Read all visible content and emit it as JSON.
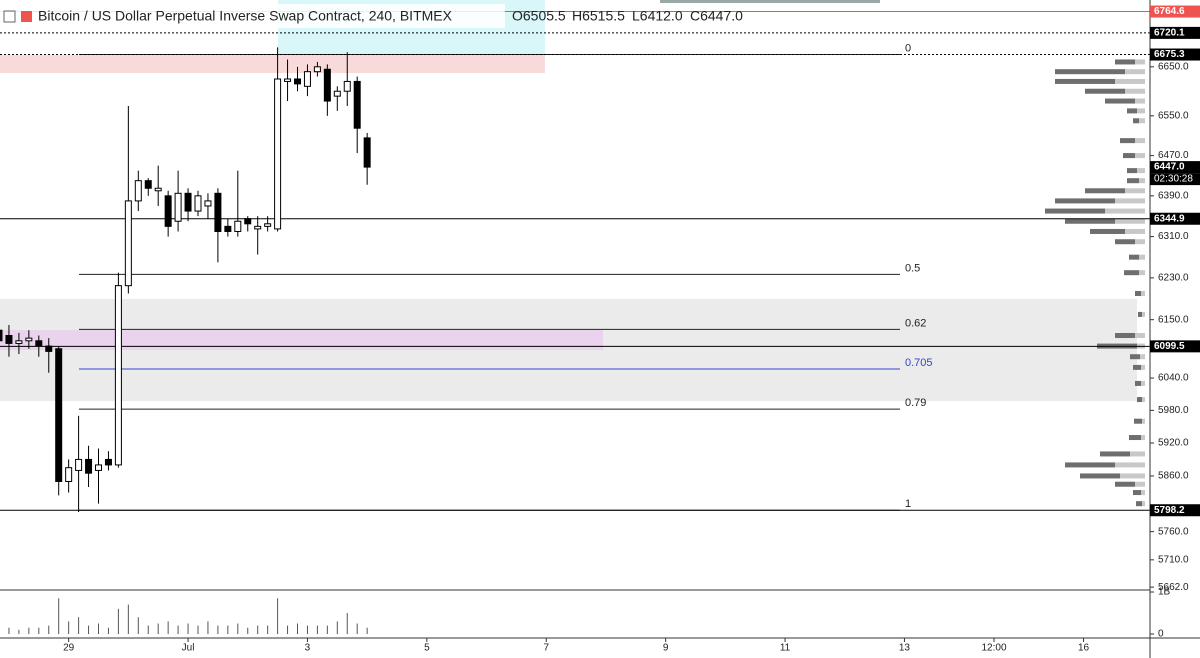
{
  "chart_data": {
    "type": "candlestick",
    "title": "Bitcoin / US Dollar Perpetual Inverse Swap Contract, 240, BITMEX",
    "ohlc_labels": [
      "O6505.5",
      "H6515.5",
      "L6412.0",
      "C6447.0"
    ],
    "log_scale": true,
    "ylim": [
      5657,
      6772
    ],
    "yticks": [
      {
        "value": 6650,
        "label": "6650.0"
      },
      {
        "value": 6550,
        "label": "6550.0"
      },
      {
        "value": 6470,
        "label": "6470.0"
      },
      {
        "value": 6390,
        "label": "6390.0"
      },
      {
        "value": 6310,
        "label": "6310.0"
      },
      {
        "value": 6230,
        "label": "6230.0"
      },
      {
        "value": 6150,
        "label": "6150.0"
      },
      {
        "value": 6040,
        "label": "6040.0"
      },
      {
        "value": 5980,
        "label": "5980.0"
      },
      {
        "value": 5920,
        "label": "5920.0"
      },
      {
        "value": 5860,
        "label": "5860.0"
      },
      {
        "value": 5760,
        "label": "5760.0"
      },
      {
        "value": 5710,
        "label": "5710.0"
      },
      {
        "value": 5662,
        "label": "5662.0"
      }
    ],
    "xticks": [
      {
        "value": 7,
        "label": "29"
      },
      {
        "value": 19,
        "label": "Jul"
      },
      {
        "value": 31,
        "label": "3"
      },
      {
        "value": 43,
        "label": "5"
      },
      {
        "value": 55,
        "label": "7"
      },
      {
        "value": 67,
        "label": "9"
      },
      {
        "value": 79,
        "label": "11"
      },
      {
        "value": 91,
        "label": "13"
      },
      {
        "value": 100,
        "label": "12:00"
      },
      {
        "value": 109,
        "label": "16"
      }
    ],
    "colors": {
      "up": "#ffffff",
      "down": "#000000"
    },
    "open": [
      6130,
      6120,
      6105,
      6110,
      6110,
      6100,
      6095,
      5850,
      5870,
      5890,
      5870,
      5890,
      5880,
      6215,
      6380,
      6420,
      6400,
      6390,
      6340,
      6395,
      6360,
      6370,
      6395,
      6330,
      6320,
      6345,
      6325,
      6330,
      6325,
      6620,
      6625,
      6610,
      6640,
      6645,
      6590,
      6600,
      6620,
      6505.5
    ],
    "high": [
      6180,
      6140,
      6125,
      6130,
      6120,
      6115,
      6100,
      5890,
      5970,
      5915,
      5910,
      5905,
      6240,
      6570,
      6440,
      6425,
      6450,
      6400,
      6440,
      6405,
      6400,
      6395,
      6405,
      6345,
      6440,
      6350,
      6350,
      6350,
      6690,
      6665,
      6650,
      6655,
      6660,
      6655,
      6610,
      6680,
      6630,
      6515.5
    ],
    "low": [
      6100,
      6080,
      6085,
      6095,
      6080,
      6050,
      5825,
      5830,
      5795,
      5840,
      5810,
      5870,
      5875,
      6200,
      6360,
      6390,
      6370,
      6310,
      6320,
      6340,
      6350,
      6345,
      6260,
      6310,
      6310,
      6320,
      6275,
      6320,
      6320,
      6580,
      6600,
      6590,
      6630,
      6550,
      6560,
      6570,
      6475,
      6412
    ],
    "close": [
      6110,
      6105,
      6110,
      6115,
      6100,
      6090,
      5850,
      5875,
      5890,
      5865,
      5880,
      5880,
      6215,
      6380,
      6420,
      6405,
      6405,
      6330,
      6395,
      6360,
      6390,
      6380,
      6320,
      6320,
      6340,
      6335,
      6330,
      6335,
      6625,
      6625,
      6615,
      6640,
      6650,
      6580,
      6600,
      6620,
      6525,
      6447
    ],
    "volume": [
      150000000,
      150000000,
      100000000,
      150000000,
      150000000,
      200000000,
      850000000,
      300000000,
      400000000,
      200000000,
      250000000,
      150000000,
      600000000,
      700000000,
      400000000,
      200000000,
      250000000,
      300000000,
      200000000,
      250000000,
      200000000,
      300000000,
      200000000,
      200000000,
      250000000,
      150000000,
      200000000,
      200000000,
      850000000,
      200000000,
      250000000,
      200000000,
      200000000,
      200000000,
      300000000,
      500000000,
      250000000,
      150000000
    ],
    "volume_ylim": [
      0,
      1000000000
    ],
    "volume_ticks": [
      0,
      {
        "value": 1000000000,
        "label": "1B"
      }
    ],
    "fib_levels": [
      {
        "ratio": 0,
        "price": 6675.3,
        "color": "#222222"
      },
      {
        "ratio": 0.5,
        "price": 6236.75,
        "color": "#222222"
      },
      {
        "ratio": 0.62,
        "price": 6131.5,
        "color": "#222222"
      },
      {
        "ratio": 0.705,
        "price": 6057,
        "color": "#3344cc"
      },
      {
        "ratio": 0.79,
        "price": 5982.4,
        "color": "#222222"
      },
      {
        "ratio": 1,
        "price": 5798.2,
        "color": "#222222"
      }
    ],
    "price_markers": [
      {
        "price": 6764.6,
        "color": "#ef5350",
        "line": "solid"
      },
      {
        "price": 6720.1,
        "color": "#000000",
        "line": "dotted"
      },
      {
        "price": 6675.3,
        "color": "#000000",
        "line": "dotted"
      },
      {
        "price": {
          "value": 6447,
          "label": "6447.0"
        },
        "color": "#000000",
        "line": "none"
      },
      {
        "price": 6344.9,
        "color": "#000000",
        "line": "solid"
      },
      {
        "price": 6099.5,
        "color": "#000000",
        "line": "solid"
      },
      {
        "price": 5798.2,
        "color": "#000000",
        "line": "solid"
      }
    ],
    "countdown": "02:30:28",
    "volume_profile": {
      "prices": [
        6660,
        6640,
        6620,
        6600,
        6580,
        6560,
        6540,
        6500,
        6470,
        6440,
        6420,
        6400,
        6380,
        6360,
        6340,
        6320,
        6300,
        6270,
        6240,
        6200,
        6160,
        6120,
        6100,
        6080,
        6060,
        6030,
        6000,
        5960,
        5930,
        5900,
        5880,
        5860,
        5845,
        5830,
        5810
      ],
      "up": [
        20,
        70,
        60,
        40,
        30,
        10,
        6,
        15,
        12,
        10,
        12,
        40,
        60,
        60,
        50,
        35,
        20,
        10,
        15,
        6,
        4,
        20,
        40,
        10,
        8,
        6,
        5,
        8,
        12,
        30,
        50,
        40,
        20,
        8,
        6
      ],
      "down": [
        10,
        20,
        30,
        20,
        10,
        8,
        6,
        10,
        10,
        8,
        6,
        20,
        30,
        40,
        30,
        20,
        10,
        6,
        6,
        4,
        3,
        10,
        8,
        5,
        4,
        4,
        3,
        3,
        4,
        15,
        30,
        25,
        10,
        4,
        3
      ]
    }
  }
}
